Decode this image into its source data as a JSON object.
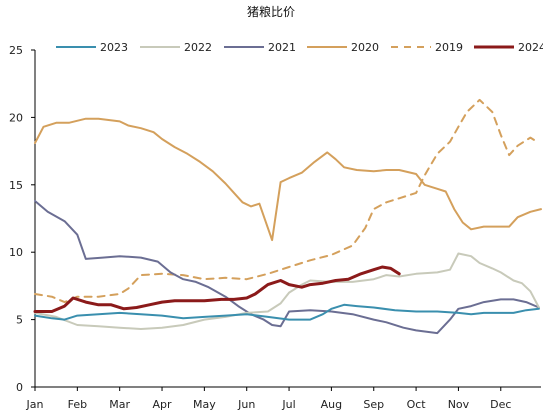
{
  "chart_data": {
    "type": "line",
    "title": "猪粮比价",
    "xlabel": "",
    "ylabel": "",
    "ylim": [
      0,
      25
    ],
    "yticks": [
      0,
      5,
      10,
      15,
      20,
      25
    ],
    "xlim": [
      1,
      12.95
    ],
    "x_tick_labels": [
      "Jan",
      "Feb",
      "Mar",
      "Apr",
      "May",
      "Jun",
      "Jul",
      "Aug",
      "Sep",
      "Oct",
      "Nov",
      "Dec"
    ],
    "legend_position": "top",
    "grid": false,
    "series": [
      {
        "name": "2023",
        "color": "#3A8FAE",
        "dash": false,
        "width": 2,
        "points": [
          [
            1.0,
            5.3
          ],
          [
            1.4,
            5.1
          ],
          [
            1.7,
            5.0
          ],
          [
            2.0,
            5.3
          ],
          [
            2.5,
            5.4
          ],
          [
            3.0,
            5.5
          ],
          [
            3.5,
            5.4
          ],
          [
            4.0,
            5.3
          ],
          [
            4.5,
            5.1
          ],
          [
            5.0,
            5.2
          ],
          [
            5.5,
            5.3
          ],
          [
            6.0,
            5.4
          ],
          [
            6.5,
            5.2
          ],
          [
            7.0,
            5.0
          ],
          [
            7.5,
            5.0
          ],
          [
            7.8,
            5.4
          ],
          [
            8.0,
            5.8
          ],
          [
            8.3,
            6.1
          ],
          [
            8.6,
            6.0
          ],
          [
            9.0,
            5.9
          ],
          [
            9.5,
            5.7
          ],
          [
            10.0,
            5.6
          ],
          [
            10.5,
            5.6
          ],
          [
            11.0,
            5.5
          ],
          [
            11.3,
            5.4
          ],
          [
            11.6,
            5.5
          ],
          [
            12.0,
            5.5
          ],
          [
            12.3,
            5.5
          ],
          [
            12.6,
            5.7
          ],
          [
            12.9,
            5.8
          ]
        ]
      },
      {
        "name": "2022",
        "color": "#C8CABA",
        "dash": false,
        "width": 2,
        "points": [
          [
            1.0,
            5.5
          ],
          [
            1.5,
            5.2
          ],
          [
            2.0,
            4.6
          ],
          [
            2.5,
            4.5
          ],
          [
            3.0,
            4.4
          ],
          [
            3.5,
            4.3
          ],
          [
            4.0,
            4.4
          ],
          [
            4.5,
            4.6
          ],
          [
            5.0,
            5.0
          ],
          [
            5.5,
            5.2
          ],
          [
            6.0,
            5.5
          ],
          [
            6.5,
            5.6
          ],
          [
            6.8,
            6.2
          ],
          [
            7.0,
            7.0
          ],
          [
            7.3,
            7.6
          ],
          [
            7.5,
            7.9
          ],
          [
            8.0,
            7.8
          ],
          [
            8.5,
            7.8
          ],
          [
            9.0,
            8.0
          ],
          [
            9.3,
            8.3
          ],
          [
            9.6,
            8.2
          ],
          [
            10.0,
            8.4
          ],
          [
            10.5,
            8.5
          ],
          [
            10.8,
            8.7
          ],
          [
            11.0,
            9.9
          ],
          [
            11.3,
            9.7
          ],
          [
            11.5,
            9.2
          ],
          [
            11.8,
            8.8
          ],
          [
            12.0,
            8.5
          ],
          [
            12.3,
            7.9
          ],
          [
            12.5,
            7.7
          ],
          [
            12.7,
            7.1
          ],
          [
            12.9,
            5.9
          ]
        ]
      },
      {
        "name": "2021",
        "color": "#6B6E93",
        "dash": false,
        "width": 2,
        "points": [
          [
            1.0,
            13.8
          ],
          [
            1.3,
            13.0
          ],
          [
            1.7,
            12.3
          ],
          [
            2.0,
            11.3
          ],
          [
            2.2,
            9.5
          ],
          [
            2.6,
            9.6
          ],
          [
            3.0,
            9.7
          ],
          [
            3.5,
            9.6
          ],
          [
            3.9,
            9.3
          ],
          [
            4.2,
            8.5
          ],
          [
            4.5,
            8.0
          ],
          [
            4.8,
            7.8
          ],
          [
            5.1,
            7.4
          ],
          [
            5.5,
            6.7
          ],
          [
            5.8,
            6.0
          ],
          [
            6.1,
            5.4
          ],
          [
            6.4,
            5.0
          ],
          [
            6.6,
            4.6
          ],
          [
            6.8,
            4.5
          ],
          [
            7.0,
            5.6
          ],
          [
            7.5,
            5.7
          ],
          [
            8.0,
            5.6
          ],
          [
            8.5,
            5.4
          ],
          [
            9.0,
            5.0
          ],
          [
            9.3,
            4.8
          ],
          [
            9.7,
            4.4
          ],
          [
            10.0,
            4.2
          ],
          [
            10.5,
            4.0
          ],
          [
            10.8,
            5.0
          ],
          [
            11.0,
            5.8
          ],
          [
            11.3,
            6.0
          ],
          [
            11.6,
            6.3
          ],
          [
            12.0,
            6.5
          ],
          [
            12.3,
            6.5
          ],
          [
            12.6,
            6.3
          ],
          [
            12.9,
            5.9
          ]
        ]
      },
      {
        "name": "2020",
        "color": "#D4A05C",
        "dash": false,
        "width": 2,
        "points": [
          [
            1.0,
            18.1
          ],
          [
            1.2,
            19.3
          ],
          [
            1.5,
            19.6
          ],
          [
            1.8,
            19.6
          ],
          [
            2.2,
            19.9
          ],
          [
            2.5,
            19.9
          ],
          [
            3.0,
            19.7
          ],
          [
            3.2,
            19.4
          ],
          [
            3.5,
            19.2
          ],
          [
            3.8,
            18.9
          ],
          [
            4.0,
            18.4
          ],
          [
            4.3,
            17.8
          ],
          [
            4.6,
            17.3
          ],
          [
            4.9,
            16.7
          ],
          [
            5.2,
            16.0
          ],
          [
            5.5,
            15.1
          ],
          [
            5.7,
            14.4
          ],
          [
            5.9,
            13.7
          ],
          [
            6.1,
            13.4
          ],
          [
            6.3,
            13.6
          ],
          [
            6.6,
            10.9
          ],
          [
            6.8,
            15.2
          ],
          [
            7.0,
            15.5
          ],
          [
            7.3,
            15.9
          ],
          [
            7.6,
            16.7
          ],
          [
            7.9,
            17.4
          ],
          [
            8.1,
            16.9
          ],
          [
            8.3,
            16.3
          ],
          [
            8.6,
            16.1
          ],
          [
            9.0,
            16.0
          ],
          [
            9.3,
            16.1
          ],
          [
            9.6,
            16.1
          ],
          [
            10.0,
            15.8
          ],
          [
            10.2,
            15.0
          ],
          [
            10.5,
            14.7
          ],
          [
            10.7,
            14.5
          ],
          [
            10.9,
            13.2
          ],
          [
            11.1,
            12.2
          ],
          [
            11.3,
            11.7
          ],
          [
            11.6,
            11.9
          ],
          [
            12.0,
            11.9
          ],
          [
            12.2,
            11.9
          ],
          [
            12.4,
            12.6
          ],
          [
            12.7,
            13.0
          ],
          [
            12.95,
            13.2
          ]
        ]
      },
      {
        "name": "2019",
        "color": "#D4A05C",
        "dash": true,
        "width": 2,
        "points": [
          [
            1.0,
            6.9
          ],
          [
            1.4,
            6.7
          ],
          [
            1.7,
            6.3
          ],
          [
            2.0,
            6.7
          ],
          [
            2.5,
            6.7
          ],
          [
            3.0,
            6.9
          ],
          [
            3.2,
            7.3
          ],
          [
            3.5,
            8.3
          ],
          [
            4.0,
            8.4
          ],
          [
            4.5,
            8.3
          ],
          [
            5.0,
            8.0
          ],
          [
            5.5,
            8.1
          ],
          [
            6.0,
            8.0
          ],
          [
            6.5,
            8.4
          ],
          [
            7.0,
            8.9
          ],
          [
            7.5,
            9.4
          ],
          [
            8.0,
            9.8
          ],
          [
            8.5,
            10.5
          ],
          [
            8.8,
            11.8
          ],
          [
            9.0,
            13.2
          ],
          [
            9.3,
            13.7
          ],
          [
            9.6,
            14.0
          ],
          [
            10.0,
            14.4
          ],
          [
            10.2,
            15.7
          ],
          [
            10.5,
            17.3
          ],
          [
            10.8,
            18.2
          ],
          [
            11.0,
            19.3
          ],
          [
            11.2,
            20.4
          ],
          [
            11.5,
            21.3
          ],
          [
            11.8,
            20.4
          ],
          [
            12.0,
            18.7
          ],
          [
            12.2,
            17.2
          ],
          [
            12.4,
            17.9
          ],
          [
            12.7,
            18.5
          ],
          [
            12.9,
            18.1
          ]
        ]
      },
      {
        "name": "2024",
        "color": "#8B1A1A",
        "dash": false,
        "width": 3,
        "points": [
          [
            1.0,
            5.6
          ],
          [
            1.4,
            5.6
          ],
          [
            1.7,
            6.0
          ],
          [
            1.9,
            6.6
          ],
          [
            2.2,
            6.3
          ],
          [
            2.5,
            6.1
          ],
          [
            2.8,
            6.1
          ],
          [
            3.1,
            5.8
          ],
          [
            3.4,
            5.9
          ],
          [
            3.7,
            6.1
          ],
          [
            4.0,
            6.3
          ],
          [
            4.3,
            6.4
          ],
          [
            4.7,
            6.4
          ],
          [
            5.0,
            6.4
          ],
          [
            5.4,
            6.5
          ],
          [
            5.7,
            6.5
          ],
          [
            6.0,
            6.6
          ],
          [
            6.2,
            6.9
          ],
          [
            6.5,
            7.6
          ],
          [
            6.8,
            7.9
          ],
          [
            7.0,
            7.6
          ],
          [
            7.3,
            7.4
          ],
          [
            7.5,
            7.6
          ],
          [
            7.8,
            7.7
          ],
          [
            8.1,
            7.9
          ],
          [
            8.4,
            8.0
          ],
          [
            8.7,
            8.4
          ],
          [
            9.0,
            8.7
          ],
          [
            9.2,
            8.9
          ],
          [
            9.4,
            8.8
          ],
          [
            9.6,
            8.4
          ]
        ]
      }
    ]
  }
}
